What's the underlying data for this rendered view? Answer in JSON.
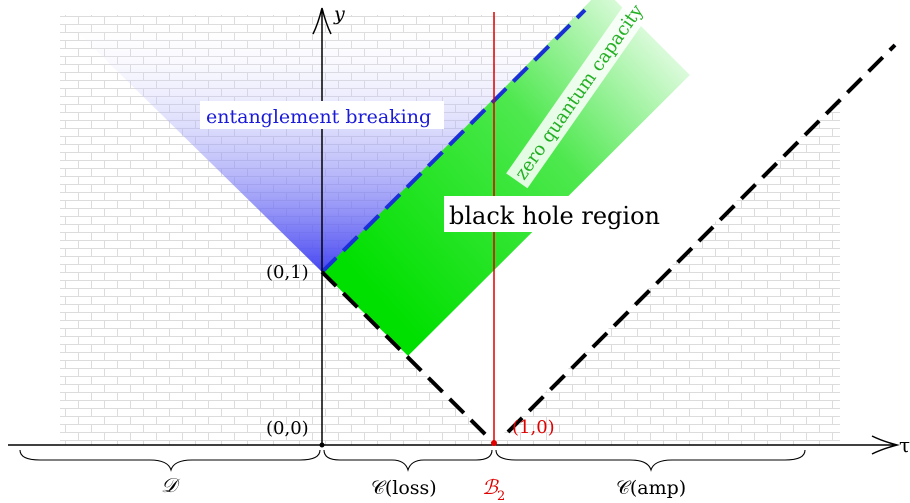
{
  "axes": {
    "x_label": "τ",
    "y_label": "y"
  },
  "points": {
    "origin": "(0,0)",
    "p01": "(0,1)",
    "p10": "(1,0)"
  },
  "regions": {
    "entanglement_breaking": "entanglement breaking",
    "zero_quantum_capacity": "zero quantum capacity",
    "black_hole_region": "black hole region"
  },
  "braces": {
    "D": "𝒟",
    "loss": "𝒞(loss)",
    "B2_main": "ℬ",
    "B2_sub": "2",
    "amp": "𝒞(amp)"
  },
  "colors": {
    "entanglement_breaking": "#3a3af0",
    "zero_capacity_label": "#22b022",
    "zero_capacity_fill": "#00e000",
    "boundary_dashed": "#1a2fd6",
    "B2_line": "#e00000",
    "black": "#000000",
    "bricks": "#dcdcdc"
  }
}
